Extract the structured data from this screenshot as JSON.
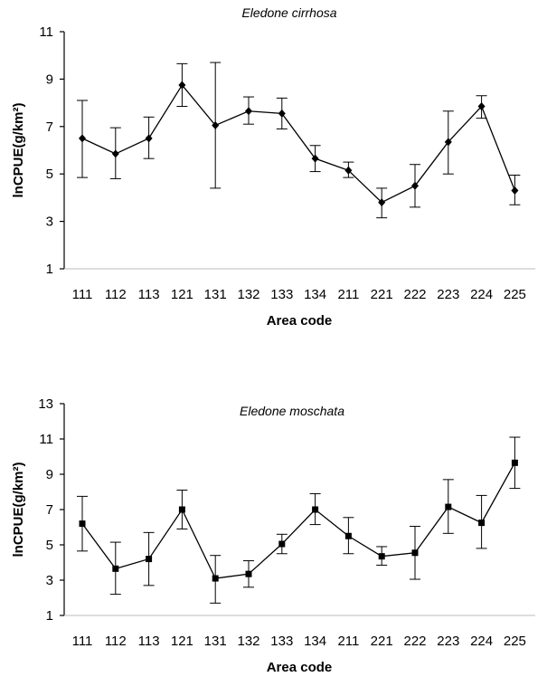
{
  "chart_data": [
    {
      "type": "line",
      "title": "Eledone cirrhosa",
      "xlabel": "Area code",
      "ylabel": "lnCPUE(g/km²)",
      "categories": [
        "111",
        "112",
        "113",
        "121",
        "131",
        "132",
        "133",
        "134",
        "211",
        "221",
        "222",
        "223",
        "224",
        "225"
      ],
      "ylim": [
        1,
        11
      ],
      "yticks": [
        1,
        3,
        5,
        7,
        9,
        11
      ],
      "marker": "diamond",
      "series": [
        {
          "values": [
            6.5,
            5.85,
            6.5,
            8.75,
            7.05,
            7.65,
            7.55,
            5.65,
            5.15,
            3.8,
            4.5,
            6.35,
            7.85,
            4.3
          ],
          "err_low": [
            4.85,
            4.8,
            5.65,
            7.85,
            4.4,
            7.1,
            6.9,
            5.1,
            4.85,
            3.15,
            3.6,
            5.0,
            7.35,
            3.7
          ],
          "err_high": [
            8.1,
            6.95,
            7.4,
            9.65,
            9.7,
            8.25,
            8.2,
            6.2,
            5.5,
            4.4,
            5.4,
            7.65,
            8.3,
            4.95
          ]
        }
      ]
    },
    {
      "type": "line",
      "title": "Eledone moschata",
      "xlabel": "Area code",
      "ylabel": "lnCPUE(g/km²)",
      "categories": [
        "111",
        "112",
        "113",
        "121",
        "131",
        "132",
        "133",
        "134",
        "211",
        "221",
        "222",
        "223",
        "224",
        "225"
      ],
      "ylim": [
        1,
        13
      ],
      "yticks": [
        1,
        3,
        5,
        7,
        9,
        11,
        13
      ],
      "marker": "square",
      "series": [
        {
          "values": [
            6.2,
            3.65,
            4.2,
            7.0,
            3.1,
            3.35,
            5.05,
            7.0,
            5.5,
            4.35,
            4.55,
            7.15,
            6.25,
            9.65
          ],
          "err_low": [
            4.65,
            2.2,
            2.7,
            5.9,
            1.7,
            2.6,
            4.5,
            6.15,
            4.5,
            3.85,
            3.05,
            5.65,
            4.8,
            8.2
          ],
          "err_high": [
            7.75,
            5.15,
            5.7,
            8.1,
            4.4,
            4.1,
            5.6,
            7.9,
            6.55,
            4.9,
            6.05,
            8.7,
            7.8,
            11.1
          ]
        }
      ]
    }
  ]
}
